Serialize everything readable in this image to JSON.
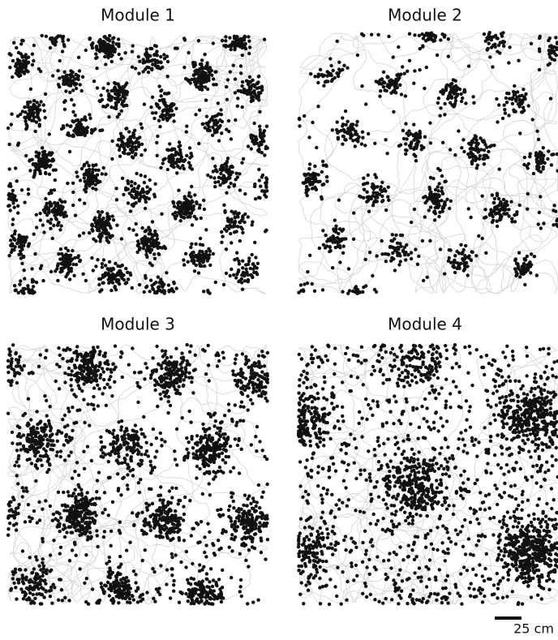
{
  "panels": [
    {
      "title": "Module 1"
    },
    {
      "title": "Module 2"
    },
    {
      "title": "Module 3"
    },
    {
      "title": "Module 4"
    }
  ],
  "scale_bar": {
    "label": "25 cm"
  }
}
